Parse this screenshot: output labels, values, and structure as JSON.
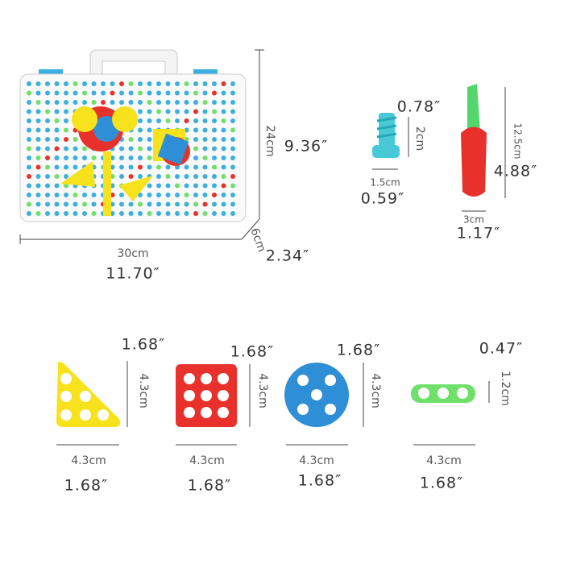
{
  "case": {
    "height_cm": "24cm",
    "height_in": "9.36″",
    "width_cm": "30cm",
    "width_in": "11.70″",
    "depth_cm": "6cm",
    "depth_in": "2.34″"
  },
  "screw": {
    "height_in": "0.78″",
    "height_cm": "2cm",
    "width_cm": "1.5cm",
    "width_in": "0.59″"
  },
  "screwdriver": {
    "height_cm": "12.5cm",
    "height_in": "4.88″",
    "width_cm": "3cm",
    "width_in": "1.17″"
  },
  "pieces": [
    {
      "height_in": "1.68″",
      "height_cm": "4.3cm",
      "width_cm": "4.3cm",
      "width_in": "1.68″"
    },
    {
      "height_in": "1.68″",
      "height_cm": "4.3cm",
      "width_cm": "4.3cm",
      "width_in": "1.68″"
    },
    {
      "height_in": "1.68″",
      "height_cm": "4.3cm",
      "width_cm": "4.3cm",
      "width_in": "1.68″"
    },
    {
      "height_in": "0.47″",
      "height_cm": "1.2cm",
      "width_cm": "4.3cm",
      "width_in": "1.68″"
    }
  ]
}
